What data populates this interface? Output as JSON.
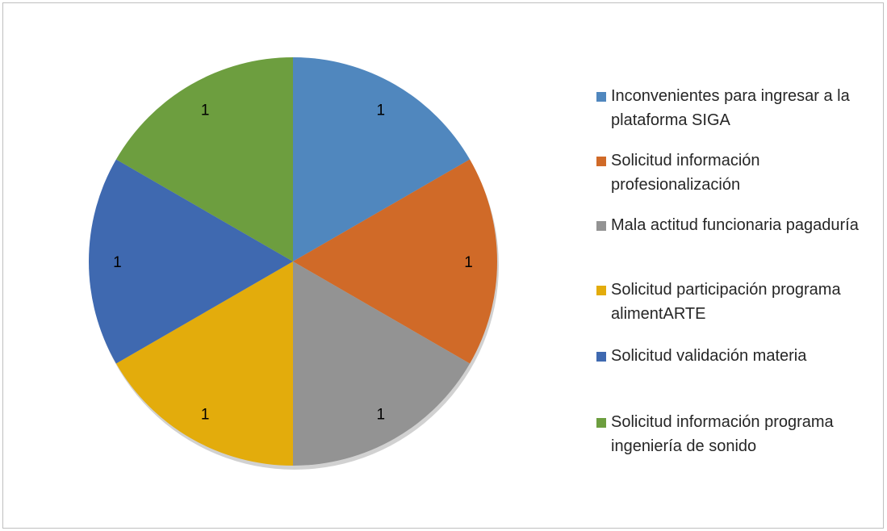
{
  "chart_data": {
    "type": "pie",
    "categories": [
      "Inconvenientes para ingresar a la plataforma SIGA",
      "Solicitud información profesionalización",
      "Mala actitud funcionaria pagaduría",
      "Solicitud participación programa alimentARTE",
      "Solicitud validación materia",
      "Solicitud información programa ingeniería de sonido"
    ],
    "values": [
      1,
      1,
      1,
      1,
      1,
      1
    ],
    "data_labels": [
      "1",
      "1",
      "1",
      "1",
      "1",
      "1"
    ],
    "colors": [
      "#5087be",
      "#d06a28",
      "#939393",
      "#e3ac0c",
      "#3f69b0",
      "#6d9e3f"
    ],
    "legend_position": "right",
    "title": ""
  }
}
